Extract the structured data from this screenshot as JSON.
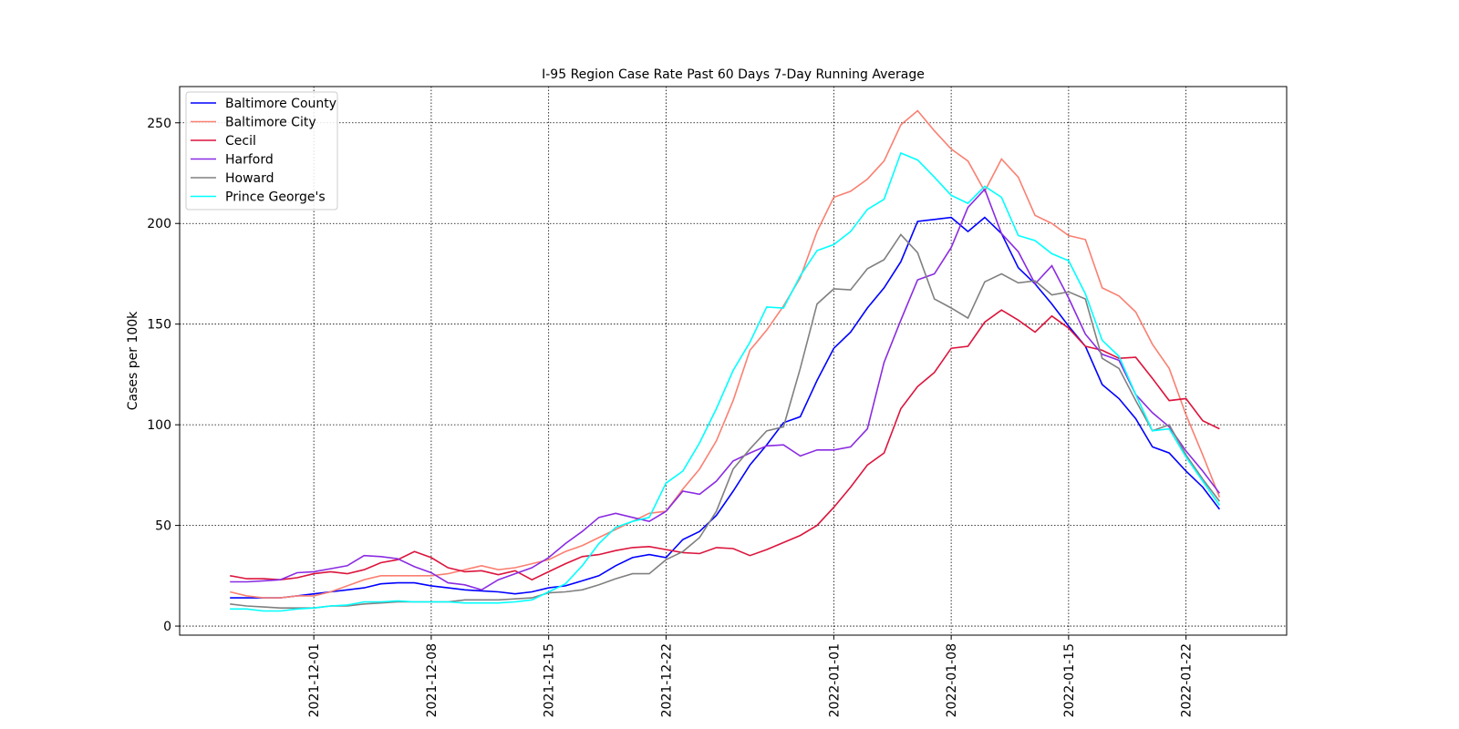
{
  "chart_data": {
    "type": "line",
    "title": "I-95 Region Case Rate  Past 60 Days 7-Day Running Average",
    "y_label": "Cases per 100k",
    "x": [
      "2021-11-26",
      "2021-11-27",
      "2021-11-28",
      "2021-11-29",
      "2021-11-30",
      "2021-12-01",
      "2021-12-02",
      "2021-12-03",
      "2021-12-04",
      "2021-12-05",
      "2021-12-06",
      "2021-12-07",
      "2021-12-08",
      "2021-12-09",
      "2021-12-10",
      "2021-12-11",
      "2021-12-12",
      "2021-12-13",
      "2021-12-14",
      "2021-12-15",
      "2021-12-16",
      "2021-12-17",
      "2021-12-18",
      "2021-12-19",
      "2021-12-20",
      "2021-12-21",
      "2021-12-22",
      "2021-12-23",
      "2021-12-24",
      "2021-12-25",
      "2021-12-26",
      "2021-12-27",
      "2021-12-28",
      "2021-12-29",
      "2021-12-30",
      "2021-12-31",
      "2022-01-01",
      "2022-01-02",
      "2022-01-03",
      "2022-01-04",
      "2022-01-05",
      "2022-01-06",
      "2022-01-07",
      "2022-01-08",
      "2022-01-09",
      "2022-01-10",
      "2022-01-11",
      "2022-01-12",
      "2022-01-13",
      "2022-01-14",
      "2022-01-15",
      "2022-01-16",
      "2022-01-17",
      "2022-01-18",
      "2022-01-19",
      "2022-01-20",
      "2022-01-21",
      "2022-01-22",
      "2022-01-23",
      "2022-01-24"
    ],
    "series": [
      {
        "name": "Baltimore County",
        "color": "#0000ff",
        "values": [
          14,
          14,
          14,
          14,
          15,
          16,
          17,
          18,
          19,
          21,
          21.5,
          21.5,
          20,
          19,
          18,
          17.5,
          17,
          16,
          17,
          19,
          20,
          22.5,
          25,
          30,
          34,
          35.5,
          34,
          43,
          47,
          55,
          67,
          80,
          90,
          101,
          104,
          122,
          138,
          146,
          158,
          168,
          181,
          201,
          202,
          203,
          196,
          203,
          195,
          178,
          170,
          160,
          149,
          139,
          120,
          113,
          103,
          89,
          86,
          77,
          69,
          58
        ]
      },
      {
        "name": "Baltimore City",
        "color": "#fa8072",
        "values": [
          17,
          15,
          14,
          14,
          15,
          15,
          17,
          20,
          23,
          25,
          25,
          25,
          25,
          26,
          28,
          30,
          28,
          29,
          31,
          33,
          37,
          40,
          44,
          48,
          52,
          56,
          57,
          68,
          78,
          92,
          112,
          137,
          147,
          159,
          173,
          196,
          213,
          216,
          222,
          231,
          249,
          256,
          246,
          237,
          231,
          216,
          232,
          223,
          204,
          200,
          194,
          192,
          168,
          164,
          156,
          140,
          128,
          105,
          85,
          64
        ]
      },
      {
        "name": "Cecil",
        "color": "#dc143c",
        "values": [
          25,
          23.5,
          23.5,
          23,
          24,
          26,
          27,
          26,
          28,
          31.5,
          33,
          37,
          34,
          29,
          27,
          27.5,
          25.5,
          27.5,
          23,
          27,
          31,
          34.5,
          35.5,
          37.5,
          39,
          39.5,
          38,
          36.5,
          36,
          39,
          38.5,
          35,
          38,
          41.5,
          45,
          50,
          59,
          69,
          80,
          86,
          108,
          119,
          126,
          138,
          139,
          151,
          157,
          152,
          146,
          154,
          148,
          139,
          137,
          133,
          133.5,
          123,
          112,
          113,
          102,
          98
        ]
      },
      {
        "name": "Harford",
        "color": "#8a2be2",
        "values": [
          22,
          22,
          22.5,
          23,
          26.5,
          27,
          28.5,
          30,
          35,
          34.5,
          33.5,
          29.5,
          26.5,
          21.5,
          20.5,
          18,
          23,
          26,
          29,
          34,
          41,
          47,
          54,
          56,
          54,
          52,
          57,
          67,
          65.5,
          72,
          82,
          86,
          89.5,
          90,
          84.5,
          87.5,
          87.5,
          89,
          98,
          131,
          152,
          172,
          175,
          188,
          208,
          217,
          195,
          186,
          170,
          179,
          163,
          145,
          135,
          132,
          115,
          106,
          99,
          87,
          77,
          66
        ]
      },
      {
        "name": "Howard",
        "color": "#808080",
        "values": [
          11,
          10,
          9.5,
          9,
          9,
          9,
          10,
          10,
          11,
          11.5,
          12,
          12,
          12,
          12,
          13,
          13,
          13,
          13.5,
          14,
          16.5,
          17,
          18,
          20.5,
          23.5,
          26,
          26,
          33,
          37,
          44,
          57,
          78,
          88,
          97,
          99,
          128,
          160,
          167.5,
          167,
          177.5,
          182,
          194.5,
          185.5,
          162.5,
          158,
          153,
          171,
          175,
          170.5,
          171.5,
          164.5,
          166,
          162.5,
          133,
          128,
          112,
          97,
          100,
          85,
          73,
          62
        ]
      },
      {
        "name": "Prince George's",
        "color": "#00ffff",
        "values": [
          8.5,
          8.5,
          7.5,
          7.5,
          8.5,
          9,
          10,
          10.5,
          12,
          12,
          12.5,
          12,
          12,
          12,
          11.5,
          11.5,
          11.5,
          12,
          13,
          17,
          21,
          30,
          41,
          49,
          52,
          54,
          71,
          77,
          91,
          108,
          127,
          141,
          158.5,
          158,
          174,
          186.5,
          189.5,
          196,
          207,
          212,
          235,
          231.5,
          223,
          214,
          210,
          218.5,
          213,
          194,
          191.5,
          185,
          181.5,
          165,
          142,
          134,
          115,
          97,
          98,
          84,
          72,
          60
        ]
      }
    ],
    "xlim": [
      "2021-11-23",
      "2022-01-28"
    ],
    "xticks": [
      "2021-12-01",
      "2021-12-08",
      "2021-12-15",
      "2021-12-22",
      "2022-01-01",
      "2022-01-08",
      "2022-01-15",
      "2022-01-22"
    ],
    "ylim": [
      -4.5,
      268
    ],
    "yticks": [
      0,
      50,
      100,
      150,
      200,
      250
    ],
    "grid": true,
    "legend": "upper left"
  }
}
